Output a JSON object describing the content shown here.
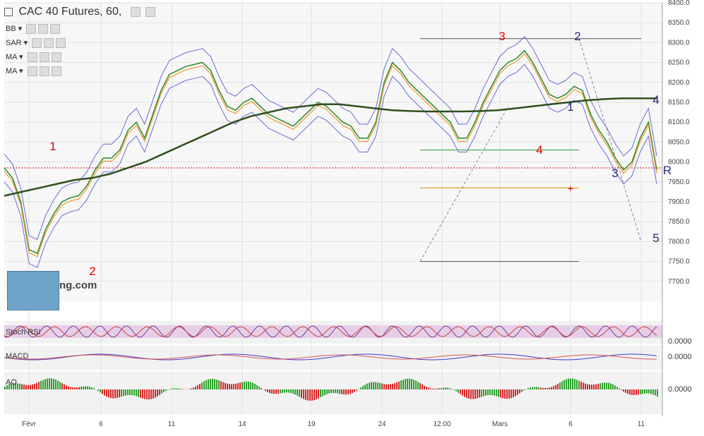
{
  "header": {
    "title": "CAC 40 Futures, 60,",
    "indicators": [
      "BB",
      "SAR",
      "MA",
      "MA"
    ]
  },
  "logo": {
    "text": "ng.com"
  },
  "panels": [
    {
      "label": "Stoch RSI",
      "value": "0.0000"
    },
    {
      "label": "MACD",
      "value": "0.0000"
    },
    {
      "label": "AO",
      "value": "0.0000"
    }
  ],
  "chart_data": {
    "type": "line",
    "title": "CAC 40 Futures, 60,",
    "x_ticks": [
      "Févr",
      "6",
      "11",
      "14",
      "19",
      "24",
      "12:00",
      "Mars",
      "6",
      "11"
    ],
    "y_ticks": [
      "8400.0",
      "8350.0",
      "8300.0",
      "8250.0",
      "8200.0",
      "8150.0",
      "8100.0",
      "8050.0",
      "8000.0",
      "7950.0",
      "7900.0",
      "7850.0",
      "7800.0",
      "7750.0",
      "7700.0"
    ],
    "ylim": [
      7650,
      8400
    ],
    "series": [
      {
        "values": [
          7985,
          7960,
          7900,
          7780,
          7770,
          7830,
          7870,
          7900,
          7910,
          7915,
          7940,
          7980,
          8010,
          8010,
          8030,
          8080,
          8100,
          8060,
          8120,
          8180,
          8220,
          8230,
          8240,
          8245,
          8250,
          8230,
          8180,
          8140,
          8130,
          8150,
          8160,
          8140,
          8120,
          8110,
          8100,
          8090,
          8110,
          8130,
          8150,
          8140,
          8120,
          8100,
          8090,
          8060,
          8060,
          8100,
          8200,
          8250,
          8230,
          8200,
          8180,
          8160,
          8140,
          8120,
          8100,
          8060,
          8060,
          8100,
          8150,
          8190,
          8230,
          8250,
          8260,
          8280,
          8250,
          8210,
          8170,
          8160,
          8170,
          8190,
          8180,
          8120,
          8080,
          8050,
          8010,
          7980,
          8000,
          8060,
          8100,
          7980
        ]
      },
      {
        "values": [
          7915,
          7925,
          7935,
          7945,
          7955,
          7960,
          7970,
          7985,
          8000,
          8020,
          8040,
          8060,
          8080,
          8100,
          8115,
          8125,
          8135,
          8140,
          8145,
          8145,
          8140,
          8135,
          8130,
          8128,
          8127,
          8127,
          8127,
          8128,
          8130,
          8135,
          8140,
          8145,
          8150,
          8155,
          8158,
          8160,
          8160,
          8160
        ]
      }
    ],
    "wave_labels": [
      {
        "text": "1",
        "color": "#dd0000"
      },
      {
        "text": "2",
        "color": "#dd0000"
      },
      {
        "text": "3",
        "color": "#dd0000"
      },
      {
        "text": "4",
        "color": "#dd0000"
      },
      {
        "text": "1",
        "color": "#2a2a7a"
      },
      {
        "text": "2",
        "color": "#2a2a7a"
      },
      {
        "text": "3",
        "color": "#2a2a7a"
      },
      {
        "text": "4",
        "color": "#2a2a7a"
      },
      {
        "text": "5",
        "color": "#2a2a7a"
      },
      {
        "text": "R",
        "color": "#2a2a7a"
      }
    ],
    "hlines": [
      {
        "y": 8310,
        "color": "#555555"
      },
      {
        "y": 8030,
        "color": "#2e9a2e"
      },
      {
        "y": 7935,
        "color": "#e08a00"
      },
      {
        "y": 7750,
        "color": "#555555"
      },
      {
        "y": 7985,
        "color": "#cc0000",
        "dashed": true
      }
    ],
    "grid": true
  }
}
